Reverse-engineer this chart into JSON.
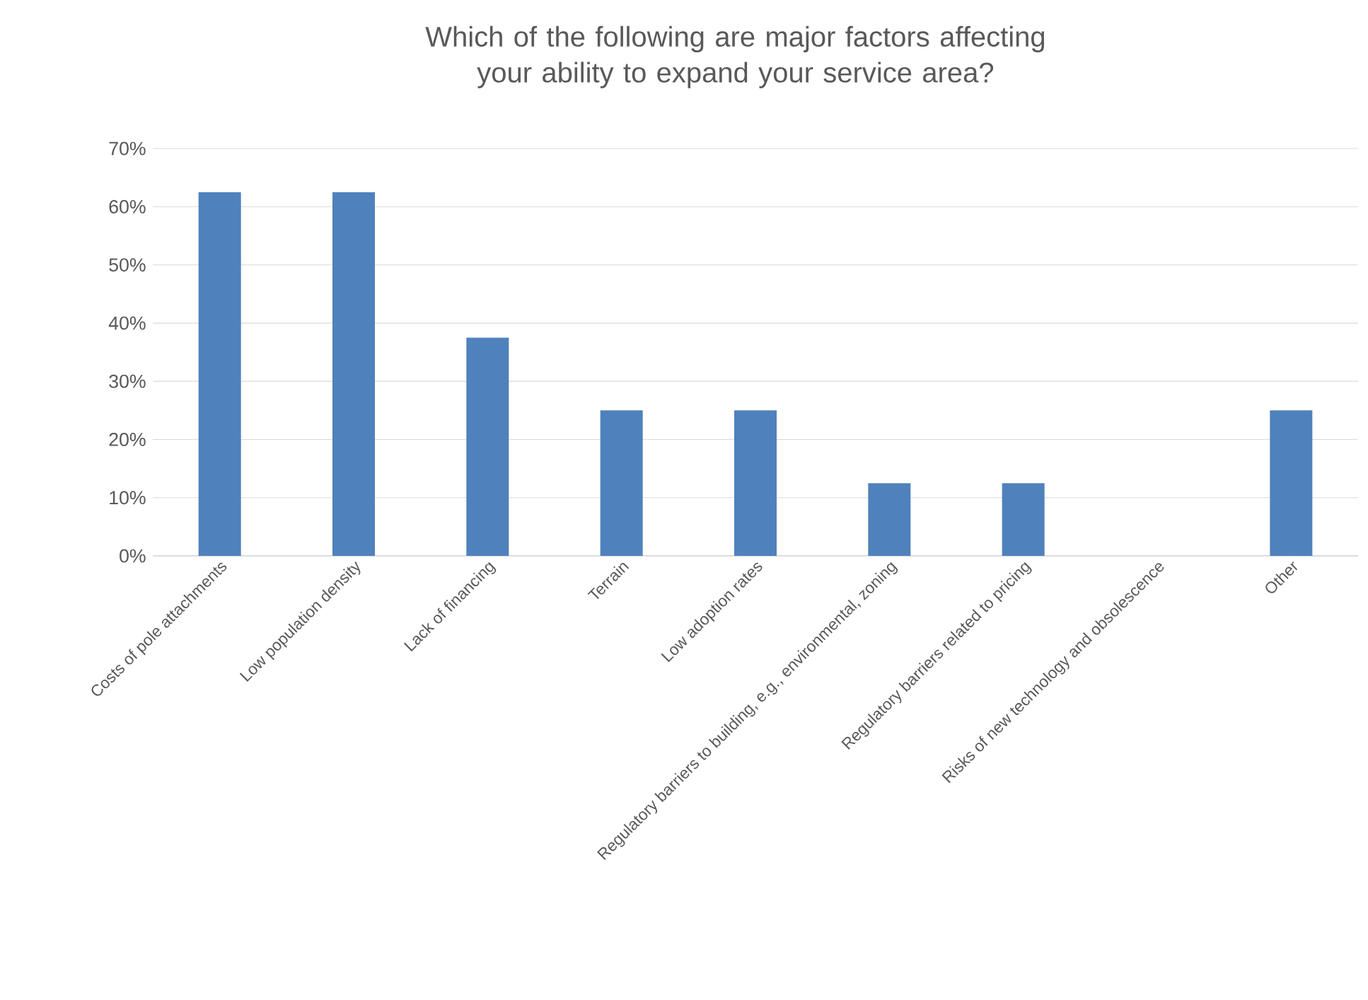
{
  "chart_data": {
    "type": "bar",
    "title": "Which of the following are major factors affecting your ability to expand your service area?",
    "categories": [
      "Costs of pole attachments",
      "Low population density",
      "Lack of financing",
      "Terrain",
      "Low adoption rates",
      "Regulatory barriers to building, e.g., environmental, zoning",
      "Regulatory barriers related to pricing",
      "Risks of new technology and obsolescence",
      "Other"
    ],
    "values": [
      62.5,
      62.5,
      37.5,
      25,
      25,
      12.5,
      12.5,
      0,
      25
    ],
    "color": "#4f81bd",
    "ylim": [
      0,
      70
    ],
    "yticks": [
      {
        "value": 0,
        "label": "0%"
      },
      {
        "value": 10,
        "label": "10%"
      },
      {
        "value": 20,
        "label": "20%"
      },
      {
        "value": 30,
        "label": "30%"
      },
      {
        "value": 40,
        "label": "40%"
      },
      {
        "value": 50,
        "label": "50%"
      },
      {
        "value": 60,
        "label": "60%"
      },
      {
        "value": 70,
        "label": "70%"
      }
    ],
    "grid": "y"
  }
}
